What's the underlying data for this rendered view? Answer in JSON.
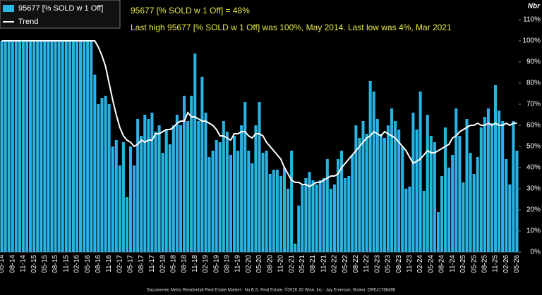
{
  "chart_data": {
    "type": "bar",
    "legend": {
      "bars": "95677 [% SOLD w 1 Off]",
      "line": "Trend"
    },
    "annotations": [
      "95677 [% SOLD w 1 Off] = 48%",
      "Last high 95677 [% SOLD w 1 Off] was 100%, May 2014. Last low was 4%, Mar 2021"
    ],
    "y_label": "Nbr",
    "footer": "Sacramento Metro Residential Real Estate Market - No B.S. Real Estate, ©2026 JD Wise, Inc - Jay Emerson, Broker, DRE#1788498",
    "categories": [
      "05-14",
      null,
      null,
      "08-14",
      null,
      null,
      "11-14",
      null,
      null,
      "02-15",
      null,
      null,
      "05-15",
      null,
      null,
      "08-15",
      null,
      null,
      "11-15",
      null,
      null,
      "02-16",
      null,
      null,
      "05-16",
      null,
      null,
      "08-16",
      null,
      null,
      "11-16",
      null,
      null,
      "02-17",
      null,
      null,
      "05-17",
      null,
      null,
      "08-17",
      null,
      null,
      "11-17",
      null,
      null,
      "02-18",
      null,
      null,
      "05-18",
      null,
      null,
      "08-18",
      null,
      null,
      "11-18",
      null,
      null,
      "02-19",
      null,
      null,
      "05-19",
      null,
      null,
      "08-19",
      null,
      null,
      "11-19",
      null,
      null,
      "02-20",
      null,
      null,
      "05-20",
      null,
      null,
      "08-20",
      null,
      null,
      "11-20",
      null,
      null,
      "02-21",
      null,
      null,
      "05-21",
      null,
      null,
      "08-21",
      null,
      null,
      "11-21",
      null,
      null,
      "02-22",
      null,
      null,
      "05-22",
      null,
      null,
      "08-22",
      null,
      null,
      "11-22",
      null,
      null,
      "02-23",
      null,
      null,
      "05-23",
      null,
      null,
      "08-23",
      null,
      null,
      "11-23",
      null,
      null,
      "02-24",
      null,
      null,
      "05-24",
      null,
      null,
      "08-24",
      null,
      null,
      "11-24",
      null,
      null,
      "02-25",
      null,
      null,
      "05-25",
      null,
      null,
      "08-25",
      null,
      null,
      "11-25",
      null,
      null,
      "02-26",
      null,
      null,
      "05-26"
    ],
    "series": [
      {
        "name": "95677 [% SOLD w 1 Off]",
        "color": "#2ab4e4",
        "values": [
          100,
          100,
          100,
          100,
          100,
          100,
          100,
          100,
          100,
          100,
          100,
          100,
          100,
          100,
          100,
          100,
          100,
          100,
          100,
          100,
          100,
          100,
          100,
          100,
          100,
          100,
          84,
          70,
          73,
          74,
          70,
          50,
          53,
          41,
          52,
          26,
          50,
          41,
          63,
          55,
          65,
          63,
          66,
          57,
          60,
          47,
          58,
          51,
          60,
          65,
          60,
          74,
          62,
          74,
          94,
          62,
          83,
          66,
          45,
          48,
          53,
          52,
          62,
          57,
          46,
          55,
          48,
          60,
          71,
          48,
          42,
          60,
          71,
          47,
          48,
          37,
          39,
          39,
          36,
          40,
          30,
          48,
          4,
          22,
          32,
          35,
          38,
          34,
          32,
          34,
          35,
          44,
          30,
          32,
          44,
          48,
          35,
          36,
          46,
          60,
          54,
          62,
          56,
          81,
          76,
          63,
          56,
          54,
          60,
          68,
          62,
          58,
          50,
          30,
          31,
          66,
          58,
          76,
          29,
          65,
          55,
          52,
          19,
          36,
          59,
          40,
          46,
          68,
          55,
          33,
          63,
          47,
          37,
          45,
          59,
          64,
          68,
          61,
          79,
          67,
          62,
          44,
          32,
          62,
          48
        ]
      },
      {
        "name": "Trend",
        "color": "#ffffff",
        "values": [
          100,
          100,
          100,
          100,
          100,
          100,
          100,
          100,
          100,
          100,
          100,
          100,
          100,
          100,
          100,
          100,
          100,
          100,
          100,
          100,
          100,
          100,
          100,
          100,
          100,
          100,
          100,
          97,
          93,
          88,
          80,
          72,
          65,
          59,
          55,
          53,
          52,
          50,
          51,
          53,
          52,
          53,
          53,
          56,
          56,
          57,
          58,
          58,
          59,
          61,
          62,
          62,
          66,
          64,
          64,
          63,
          62,
          62,
          61,
          60,
          58,
          55,
          55,
          54,
          53,
          56,
          56,
          57,
          57,
          55,
          54,
          56,
          56,
          55,
          52,
          50,
          48,
          46,
          44,
          40,
          37,
          34,
          33,
          33,
          32,
          32,
          31,
          32,
          33,
          33,
          34,
          35,
          36,
          36,
          37,
          40,
          42,
          44,
          46,
          48,
          50,
          52,
          54,
          55,
          57,
          56,
          55,
          57,
          56,
          55,
          54,
          52,
          50,
          48,
          45,
          42,
          43,
          44,
          46,
          48,
          47,
          47,
          48,
          49,
          50,
          51,
          54,
          55,
          57,
          58,
          59,
          60,
          60,
          61,
          60,
          60,
          61,
          60,
          61,
          60,
          60,
          61,
          60,
          61,
          61
        ]
      }
    ],
    "ylim": [
      0,
      110
    ],
    "yticks": [
      {
        "value": 0,
        "label": "0%"
      },
      {
        "value": 10,
        "label": "10%"
      },
      {
        "value": 20,
        "label": "20%"
      },
      {
        "value": 30,
        "label": "30%"
      },
      {
        "value": 40,
        "label": "40%"
      },
      {
        "value": 50,
        "label": "50%"
      },
      {
        "value": 60,
        "label": "60%"
      },
      {
        "value": 70,
        "label": "70%"
      },
      {
        "value": 80,
        "label": "80%"
      },
      {
        "value": 90,
        "label": "90%"
      },
      {
        "value": 100,
        "label": "100%"
      },
      {
        "value": 110,
        "label": "110%"
      }
    ]
  }
}
